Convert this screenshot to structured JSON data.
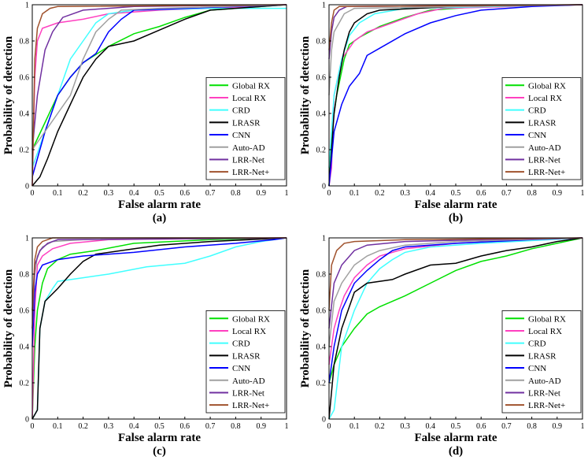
{
  "chart_data": [
    {
      "type": "line",
      "xlabel": "False alarm rate",
      "ylabel": "Probability of detection",
      "caption": "(a)",
      "xlim": [
        0,
        1
      ],
      "ylim": [
        0,
        1
      ],
      "xticks": [
        0,
        0.1,
        0.2,
        0.3,
        0.4,
        0.5,
        0.6,
        0.7,
        0.8,
        0.9,
        1
      ],
      "yticks": [
        0,
        0.2,
        0.4,
        0.6,
        0.8,
        1
      ],
      "legend": "lower right",
      "series": [
        {
          "name": "Global RX",
          "color": "#00e000",
          "x": [
            0,
            0.05,
            0.1,
            0.15,
            0.2,
            0.3,
            0.4,
            0.5,
            0.6,
            0.7,
            0.8,
            1
          ],
          "values": [
            0.2,
            0.35,
            0.5,
            0.6,
            0.68,
            0.77,
            0.84,
            0.88,
            0.93,
            0.97,
            0.98,
            1
          ]
        },
        {
          "name": "Local RX",
          "color": "#ff40c0",
          "x": [
            0,
            0.01,
            0.02,
            0.04,
            0.1,
            0.2,
            0.3,
            0.5,
            0.7,
            1
          ],
          "values": [
            0,
            0.6,
            0.8,
            0.87,
            0.9,
            0.92,
            0.95,
            0.97,
            0.98,
            1
          ]
        },
        {
          "name": "CRD",
          "color": "#40ffff",
          "x": [
            0,
            0.05,
            0.1,
            0.15,
            0.2,
            0.25,
            0.3,
            0.4,
            0.7,
            1
          ],
          "values": [
            0.1,
            0.3,
            0.5,
            0.7,
            0.8,
            0.9,
            0.95,
            0.97,
            0.98,
            0.98
          ]
        },
        {
          "name": "LRASR",
          "color": "#000000",
          "x": [
            0,
            0.03,
            0.06,
            0.1,
            0.15,
            0.2,
            0.25,
            0.3,
            0.4,
            0.5,
            0.6,
            0.7,
            0.9,
            1
          ],
          "values": [
            0,
            0.05,
            0.15,
            0.3,
            0.45,
            0.6,
            0.7,
            0.77,
            0.8,
            0.86,
            0.92,
            0.97,
            0.99,
            1
          ]
        },
        {
          "name": "CNN",
          "color": "#0000ff",
          "x": [
            0,
            0.05,
            0.1,
            0.15,
            0.2,
            0.25,
            0.3,
            0.35,
            0.4,
            0.6,
            1
          ],
          "values": [
            0.05,
            0.3,
            0.5,
            0.6,
            0.68,
            0.73,
            0.85,
            0.92,
            0.97,
            0.98,
            1
          ]
        },
        {
          "name": "Auto-AD",
          "color": "#a0a0a0",
          "x": [
            0,
            0.05,
            0.1,
            0.15,
            0.2,
            0.25,
            0.3,
            0.35,
            0.5,
            1
          ],
          "values": [
            0.2,
            0.3,
            0.4,
            0.5,
            0.7,
            0.85,
            0.92,
            0.97,
            0.98,
            1
          ]
        },
        {
          "name": "LRR-Net",
          "color": "#7030a0",
          "x": [
            0,
            0.02,
            0.05,
            0.08,
            0.12,
            0.2,
            0.4,
            1
          ],
          "values": [
            0.2,
            0.5,
            0.75,
            0.85,
            0.93,
            0.97,
            0.99,
            1
          ]
        },
        {
          "name": "LRR-Net+",
          "color": "#a0522d",
          "x": [
            0,
            0.01,
            0.02,
            0.04,
            0.07,
            0.1,
            1
          ],
          "values": [
            0,
            0.7,
            0.87,
            0.95,
            0.98,
            0.99,
            1
          ]
        }
      ]
    },
    {
      "type": "line",
      "xlabel": "False alarm rate",
      "ylabel": "Probability of detection",
      "caption": "(b)",
      "xlim": [
        0,
        1
      ],
      "ylim": [
        0,
        1
      ],
      "xticks": [
        0,
        0.1,
        0.2,
        0.3,
        0.4,
        0.5,
        0.6,
        0.7,
        0.8,
        0.9,
        1
      ],
      "yticks": [
        0,
        0.2,
        0.4,
        0.6,
        0.8,
        1
      ],
      "legend": "lower right",
      "series": [
        {
          "name": "Global RX",
          "color": "#00e000",
          "x": [
            0,
            0.01,
            0.03,
            0.06,
            0.08,
            0.12,
            0.2,
            0.3,
            0.4,
            0.6,
            1
          ],
          "values": [
            0,
            0.3,
            0.5,
            0.7,
            0.78,
            0.82,
            0.88,
            0.93,
            0.97,
            0.99,
            1
          ]
        },
        {
          "name": "Local RX",
          "color": "#ff40c0",
          "x": [
            0,
            0.01,
            0.02,
            0.05,
            0.1,
            0.15,
            0.25,
            0.35,
            0.45,
            1
          ],
          "values": [
            0,
            0.1,
            0.5,
            0.7,
            0.8,
            0.85,
            0.9,
            0.95,
            0.98,
            1
          ]
        },
        {
          "name": "CRD",
          "color": "#40ffff",
          "x": [
            0,
            0.02,
            0.05,
            0.08,
            0.12,
            0.18,
            0.3,
            1
          ],
          "values": [
            0.1,
            0.5,
            0.7,
            0.83,
            0.9,
            0.95,
            0.98,
            1
          ]
        },
        {
          "name": "LRASR",
          "color": "#000000",
          "x": [
            0,
            0.01,
            0.02,
            0.04,
            0.06,
            0.08,
            0.1,
            0.15,
            0.2,
            0.5,
            1
          ],
          "values": [
            0,
            0.2,
            0.4,
            0.6,
            0.75,
            0.85,
            0.9,
            0.95,
            0.97,
            0.99,
            1
          ]
        },
        {
          "name": "CNN",
          "color": "#0000ff",
          "x": [
            0,
            0.02,
            0.05,
            0.08,
            0.12,
            0.15,
            0.2,
            0.3,
            0.4,
            0.5,
            0.6,
            0.8,
            1
          ],
          "values": [
            0,
            0.3,
            0.45,
            0.55,
            0.62,
            0.72,
            0.76,
            0.84,
            0.9,
            0.94,
            0.97,
            0.99,
            1
          ]
        },
        {
          "name": "Auto-AD",
          "color": "#a0a0a0",
          "x": [
            0,
            0.01,
            0.02,
            0.04,
            0.06,
            0.1,
            1
          ],
          "values": [
            0.5,
            0.75,
            0.85,
            0.9,
            0.95,
            0.98,
            1
          ]
        },
        {
          "name": "LRR-Net",
          "color": "#7030a0",
          "x": [
            0,
            0.01,
            0.02,
            0.04,
            0.07,
            1
          ],
          "values": [
            0.7,
            0.85,
            0.93,
            0.97,
            0.99,
            1
          ]
        },
        {
          "name": "LRR-Net+",
          "color": "#a0522d",
          "x": [
            0,
            0.01,
            0.02,
            0.04,
            1
          ],
          "values": [
            0.75,
            0.9,
            0.97,
            0.99,
            1
          ]
        }
      ]
    },
    {
      "type": "line",
      "xlabel": "False alarm rate",
      "ylabel": "Probability of detection",
      "caption": "(c)",
      "xlim": [
        0,
        1
      ],
      "ylim": [
        0,
        1
      ],
      "xticks": [
        0,
        0.1,
        0.2,
        0.3,
        0.4,
        0.5,
        0.6,
        0.7,
        0.8,
        0.9,
        1
      ],
      "yticks": [
        0,
        0.2,
        0.4,
        0.6,
        0.8,
        1
      ],
      "legend": "lower right",
      "series": [
        {
          "name": "Global RX",
          "color": "#00e000",
          "x": [
            0,
            0.01,
            0.02,
            0.04,
            0.06,
            0.1,
            0.15,
            0.25,
            0.4,
            0.7,
            1
          ],
          "values": [
            0,
            0.4,
            0.6,
            0.75,
            0.83,
            0.88,
            0.91,
            0.93,
            0.97,
            0.99,
            1
          ]
        },
        {
          "name": "Local RX",
          "color": "#ff40c0",
          "x": [
            0,
            0.01,
            0.02,
            0.04,
            0.08,
            0.15,
            0.3,
            1
          ],
          "values": [
            0,
            0.6,
            0.85,
            0.9,
            0.94,
            0.97,
            0.99,
            1
          ]
        },
        {
          "name": "CRD",
          "color": "#40ffff",
          "x": [
            0,
            0.02,
            0.03,
            0.05,
            0.08,
            0.1,
            0.2,
            0.3,
            0.45,
            0.6,
            0.7,
            0.8,
            0.9,
            1
          ],
          "values": [
            0,
            0.05,
            0.5,
            0.65,
            0.72,
            0.76,
            0.78,
            0.8,
            0.84,
            0.86,
            0.9,
            0.95,
            0.98,
            1
          ]
        },
        {
          "name": "LRASR",
          "color": "#000000",
          "x": [
            0,
            0.02,
            0.03,
            0.05,
            0.1,
            0.15,
            0.2,
            0.25,
            0.35,
            0.5,
            0.7,
            1
          ],
          "values": [
            0,
            0.05,
            0.5,
            0.65,
            0.72,
            0.8,
            0.87,
            0.91,
            0.93,
            0.96,
            0.98,
            1
          ]
        },
        {
          "name": "CNN",
          "color": "#0000ff",
          "x": [
            0,
            0.01,
            0.02,
            0.04,
            0.1,
            0.2,
            0.4,
            0.6,
            0.8,
            0.95,
            1
          ],
          "values": [
            0.4,
            0.7,
            0.8,
            0.85,
            0.88,
            0.9,
            0.92,
            0.95,
            0.97,
            0.99,
            1
          ]
        },
        {
          "name": "Auto-AD",
          "color": "#a0a0a0",
          "x": [
            0,
            0.01,
            0.02,
            0.04,
            0.08,
            0.2,
            1
          ],
          "values": [
            0.5,
            0.8,
            0.9,
            0.95,
            0.98,
            0.99,
            1
          ]
        },
        {
          "name": "LRR-Net",
          "color": "#7030a0",
          "x": [
            0,
            0.01,
            0.03,
            0.06,
            0.1,
            1
          ],
          "values": [
            0.5,
            0.85,
            0.93,
            0.97,
            0.99,
            1
          ]
        },
        {
          "name": "LRR-Net+",
          "color": "#a0522d",
          "x": [
            0,
            0.01,
            0.02,
            0.04,
            0.08,
            1
          ],
          "values": [
            0.6,
            0.88,
            0.95,
            0.98,
            1,
            1
          ]
        }
      ]
    },
    {
      "type": "line",
      "xlabel": "False alarm rate",
      "ylabel": "Probability of detection",
      "caption": "(d)",
      "xlim": [
        0,
        1
      ],
      "ylim": [
        0,
        1
      ],
      "xticks": [
        0,
        0.1,
        0.2,
        0.3,
        0.4,
        0.5,
        0.6,
        0.7,
        0.8,
        0.9,
        1
      ],
      "yticks": [
        0,
        0.2,
        0.4,
        0.6,
        0.8,
        1
      ],
      "legend": "lower right",
      "series": [
        {
          "name": "Global RX",
          "color": "#00e000",
          "x": [
            0,
            0.02,
            0.05,
            0.1,
            0.15,
            0.2,
            0.3,
            0.4,
            0.5,
            0.6,
            0.7,
            0.8,
            0.9,
            1
          ],
          "values": [
            0.2,
            0.3,
            0.4,
            0.5,
            0.58,
            0.62,
            0.68,
            0.75,
            0.82,
            0.87,
            0.9,
            0.94,
            0.97,
            1
          ]
        },
        {
          "name": "Local RX",
          "color": "#ff40c0",
          "x": [
            0,
            0.02,
            0.04,
            0.06,
            0.1,
            0.15,
            0.2,
            0.3,
            0.5,
            0.8,
            1
          ],
          "values": [
            0.3,
            0.5,
            0.6,
            0.68,
            0.78,
            0.85,
            0.9,
            0.94,
            0.97,
            0.99,
            1
          ]
        },
        {
          "name": "CRD",
          "color": "#40ffff",
          "x": [
            0,
            0.02,
            0.05,
            0.1,
            0.15,
            0.2,
            0.25,
            0.3,
            0.4,
            0.6,
            1
          ],
          "values": [
            0,
            0.05,
            0.4,
            0.6,
            0.75,
            0.83,
            0.88,
            0.92,
            0.95,
            0.97,
            1
          ]
        },
        {
          "name": "LRASR",
          "color": "#000000",
          "x": [
            0,
            0.02,
            0.05,
            0.08,
            0.1,
            0.15,
            0.25,
            0.3,
            0.4,
            0.5,
            0.6,
            0.7,
            0.8,
            0.9,
            1
          ],
          "values": [
            0,
            0.3,
            0.5,
            0.62,
            0.7,
            0.75,
            0.77,
            0.8,
            0.85,
            0.86,
            0.9,
            0.93,
            0.95,
            0.98,
            1
          ]
        },
        {
          "name": "CNN",
          "color": "#0000ff",
          "x": [
            0,
            0.02,
            0.05,
            0.1,
            0.15,
            0.2,
            0.25,
            0.3,
            0.5,
            0.8,
            1
          ],
          "values": [
            0.2,
            0.4,
            0.6,
            0.75,
            0.82,
            0.88,
            0.93,
            0.95,
            0.97,
            0.99,
            1
          ]
        },
        {
          "name": "Auto-AD",
          "color": "#a0a0a0",
          "x": [
            0,
            0.02,
            0.05,
            0.1,
            0.15,
            0.2,
            0.3,
            0.5,
            1
          ],
          "values": [
            0.4,
            0.65,
            0.75,
            0.85,
            0.9,
            0.93,
            0.96,
            0.98,
            1
          ]
        },
        {
          "name": "LRR-Net",
          "color": "#7030a0",
          "x": [
            0,
            0.02,
            0.05,
            0.1,
            0.15,
            0.3,
            0.6,
            1
          ],
          "values": [
            0.5,
            0.75,
            0.85,
            0.93,
            0.96,
            0.98,
            0.99,
            1
          ]
        },
        {
          "name": "LRR-Net+",
          "color": "#a0522d",
          "x": [
            0,
            0.01,
            0.03,
            0.06,
            0.1,
            0.3,
            1
          ],
          "values": [
            0.6,
            0.85,
            0.93,
            0.97,
            0.98,
            0.99,
            1
          ]
        }
      ]
    }
  ]
}
